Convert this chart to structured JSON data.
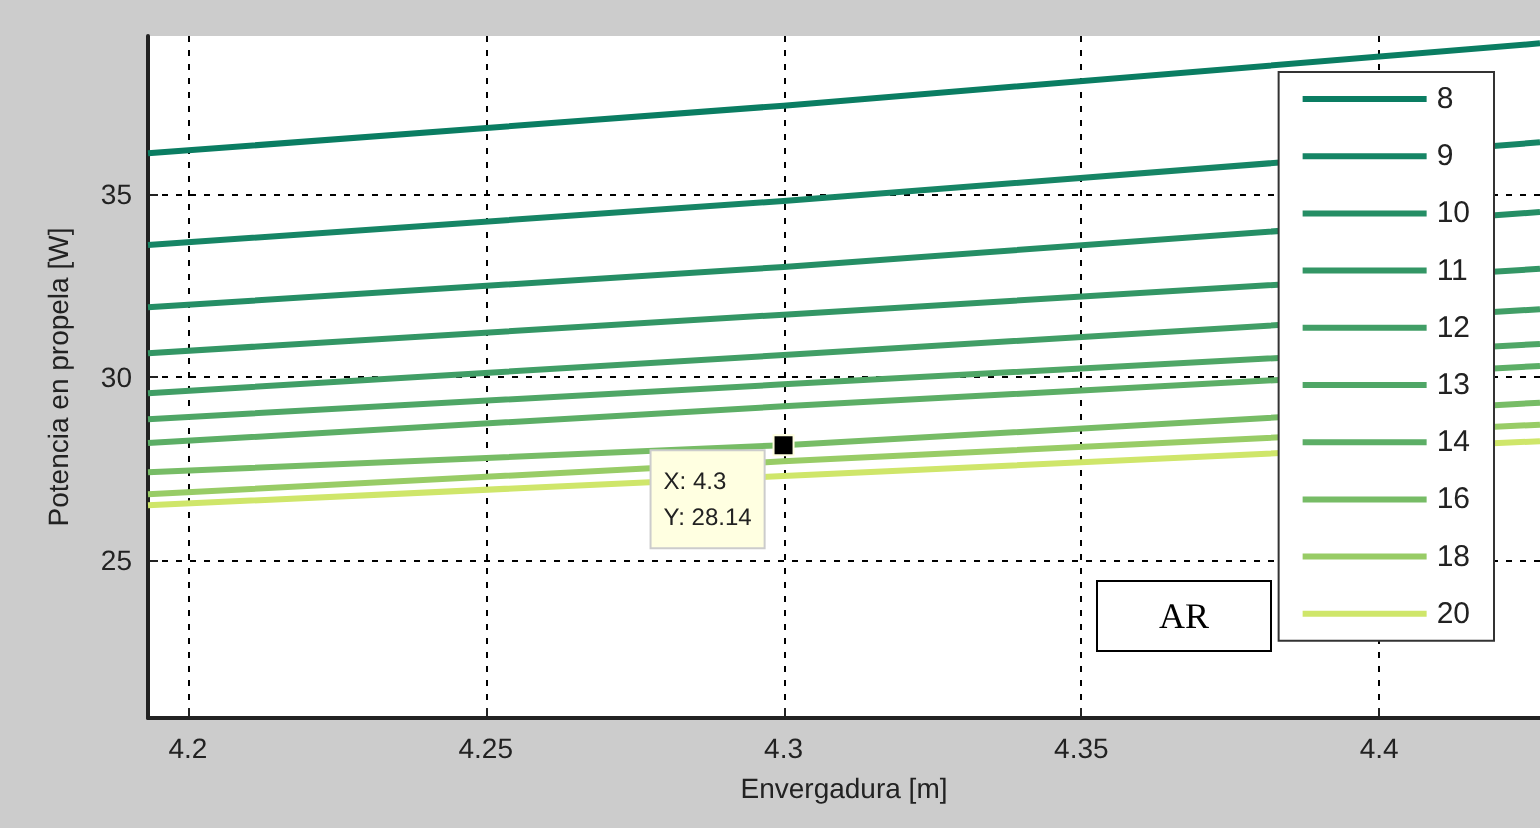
{
  "chart_data": {
    "type": "line",
    "xlabel": "Envergadura [m]",
    "ylabel": "Potencia en propela [W]",
    "legend_title": "AR",
    "x": [
      4.1933,
      4.3,
      4.427
    ],
    "series": [
      {
        "name": "8",
        "color": "#0a7d62",
        "values": [
          36.1,
          37.4,
          39.1
        ]
      },
      {
        "name": "9",
        "color": "#168565",
        "values": [
          33.6,
          34.8,
          36.4
        ]
      },
      {
        "name": "10",
        "color": "#258e65",
        "values": [
          31.9,
          33.0,
          34.5
        ]
      },
      {
        "name": "11",
        "color": "#339665",
        "values": [
          30.65,
          31.7,
          32.95
        ]
      },
      {
        "name": "12",
        "color": "#419e66",
        "values": [
          29.56,
          30.6,
          31.85
        ]
      },
      {
        "name": "13",
        "color": "#4fa666",
        "values": [
          28.85,
          29.8,
          30.9
        ]
      },
      {
        "name": "14",
        "color": "#5cae66",
        "values": [
          28.2,
          29.2,
          30.3
        ]
      },
      {
        "name": "16",
        "color": "#77bc66",
        "values": [
          27.4,
          28.14,
          29.3
        ]
      },
      {
        "name": "18",
        "color": "#98cc66",
        "values": [
          26.8,
          27.7,
          28.7
        ]
      },
      {
        "name": "20",
        "color": "#cfe66a",
        "values": [
          26.5,
          27.3,
          28.25
        ]
      }
    ],
    "annotations": [
      {
        "text": "X: 4.3\nY: 28.14",
        "x": 4.3,
        "y": 28.14
      }
    ],
    "xlim": [
      4.1933,
      4.427
    ],
    "xticks": [
      4.2,
      4.25,
      4.3,
      4.35,
      4.4
    ],
    "ylim": [
      20.7,
      39.3
    ],
    "yticks": [
      25,
      30,
      35
    ],
    "grid": true,
    "legend": "right",
    "marker": "none",
    "line_style": "solid"
  }
}
